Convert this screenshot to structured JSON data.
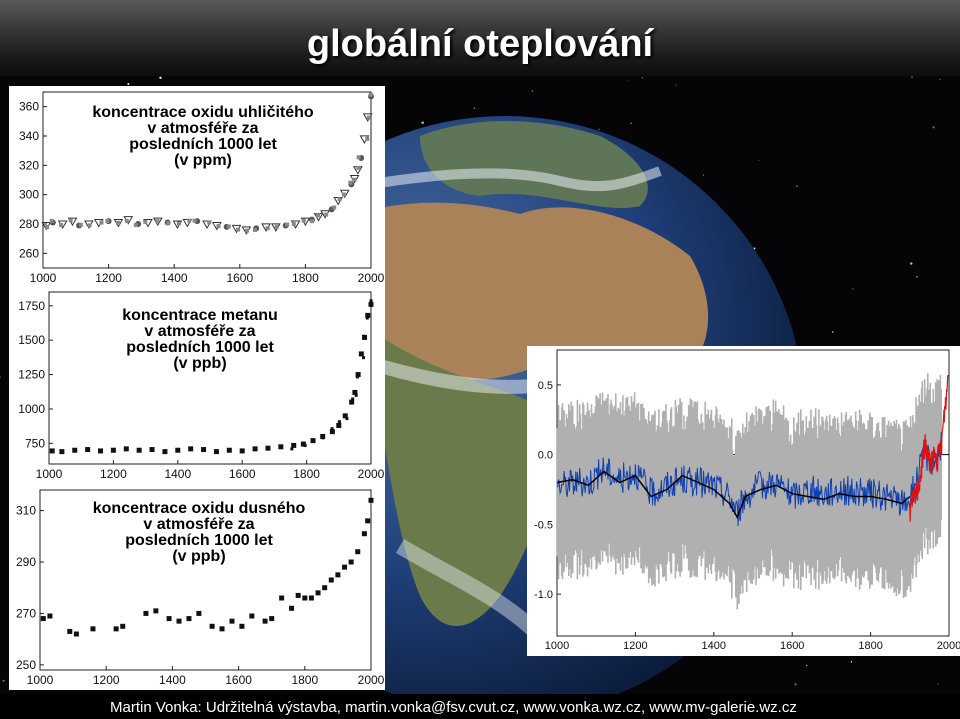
{
  "slide": {
    "title": "globální oteplování",
    "footer": "Martin Vonka: Udržitelná výstavba, martin.vonka@fsv.cvut.cz,   www.vonka.wz.cz, www.mv-galerie.wz.cz"
  },
  "colors": {
    "title_bar": "#3a3a3a",
    "markers": "#111111",
    "instrumental_series": "#e01010",
    "proxy_series": "#1040b0",
    "uncertainty_band": "#b0b0b0"
  },
  "chart_data": [
    {
      "type": "scatter",
      "title": "koncentrace oxidu uhličitého\nv atmosféře za\nposledních 1000 let\n(v ppm)",
      "xlim": [
        1000,
        2000
      ],
      "ylim": [
        250,
        370
      ],
      "x_ticks": [
        1000,
        1200,
        1400,
        1600,
        1800,
        2000
      ],
      "y_ticks": [
        260,
        280,
        300,
        320,
        340,
        360
      ],
      "grid": false,
      "series": [
        {
          "x": [
            1010,
            1030,
            1060,
            1090,
            1110,
            1140,
            1170,
            1200,
            1230,
            1260,
            1290,
            1320,
            1350,
            1380,
            1410,
            1440,
            1470,
            1500,
            1530,
            1560,
            1590,
            1620,
            1650,
            1680,
            1710,
            1740,
            1770,
            1800,
            1820,
            1840,
            1860,
            1880,
            1900,
            1920,
            1940,
            1950,
            1960,
            1970,
            1980,
            1990,
            2000
          ],
          "y": [
            279,
            281,
            280,
            282,
            279,
            280,
            281,
            282,
            281,
            283,
            280,
            281,
            282,
            281,
            280,
            281,
            282,
            280,
            279,
            278,
            277,
            276,
            277,
            278,
            278,
            279,
            280,
            282,
            283,
            285,
            287,
            290,
            296,
            301,
            307,
            311,
            317,
            325,
            338,
            353,
            367
          ]
        }
      ]
    },
    {
      "type": "scatter",
      "title": "koncentrace metanu\nv atmosféře za\nposledních 1000 let\n(v ppb)",
      "xlim": [
        1000,
        2000
      ],
      "ylim": [
        600,
        1850
      ],
      "x_ticks": [
        1000,
        1200,
        1400,
        1600,
        1800,
        2000
      ],
      "y_ticks": [
        750,
        1000,
        1250,
        1500,
        1750
      ],
      "grid": false,
      "series": [
        {
          "x": [
            1010,
            1040,
            1080,
            1120,
            1160,
            1200,
            1240,
            1280,
            1320,
            1360,
            1400,
            1440,
            1480,
            1520,
            1560,
            1600,
            1640,
            1680,
            1720,
            1760,
            1790,
            1820,
            1850,
            1880,
            1900,
            1920,
            1940,
            1950,
            1960,
            1970,
            1980,
            1990,
            2000
          ],
          "y": [
            695,
            690,
            700,
            705,
            695,
            700,
            710,
            700,
            705,
            690,
            700,
            710,
            705,
            690,
            700,
            695,
            710,
            715,
            725,
            735,
            745,
            770,
            800,
            835,
            880,
            950,
            1050,
            1120,
            1250,
            1400,
            1520,
            1680,
            1760
          ]
        }
      ]
    },
    {
      "type": "scatter",
      "title": "koncentrace oxidu dusného\nv atmosféře za\nposledních 1000 let\n(v ppb)",
      "xlim": [
        1000,
        2000
      ],
      "ylim": [
        248,
        318
      ],
      "x_ticks": [
        1000,
        1200,
        1400,
        1600,
        1800,
        2000
      ],
      "y_ticks": [
        250,
        270,
        290,
        310
      ],
      "grid": false,
      "series": [
        {
          "x": [
            1010,
            1030,
            1090,
            1110,
            1160,
            1230,
            1250,
            1320,
            1350,
            1390,
            1420,
            1450,
            1480,
            1520,
            1550,
            1580,
            1610,
            1640,
            1680,
            1700,
            1730,
            1760,
            1780,
            1800,
            1820,
            1840,
            1860,
            1880,
            1900,
            1920,
            1940,
            1960,
            1980,
            1990,
            2000
          ],
          "y": [
            268,
            269,
            263,
            262,
            264,
            264,
            265,
            270,
            271,
            268,
            267,
            268,
            270,
            265,
            264,
            267,
            265,
            269,
            267,
            268,
            276,
            272,
            277,
            276,
            276,
            278,
            280,
            283,
            285,
            288,
            290,
            294,
            301,
            306,
            314
          ]
        }
      ]
    },
    {
      "type": "line",
      "x_ticks": [
        1000,
        1200,
        1400,
        1600,
        1800,
        2000
      ],
      "y_ticks": [
        -1.0,
        -0.5,
        0.0,
        0.5
      ],
      "xlim": [
        1000,
        2000
      ],
      "ylim": [
        -1.3,
        0.75
      ],
      "grid": false,
      "series": [
        {
          "x": [
            1000,
            1040,
            1080,
            1120,
            1160,
            1200,
            1240,
            1280,
            1320,
            1360,
            1400,
            1440,
            1460,
            1480,
            1520,
            1560,
            1600,
            1640,
            1680,
            1720,
            1760,
            1800,
            1840,
            1880,
            1900
          ],
          "y": [
            -0.2,
            -0.18,
            -0.22,
            -0.12,
            -0.2,
            -0.15,
            -0.3,
            -0.25,
            -0.15,
            -0.2,
            -0.25,
            -0.35,
            -0.45,
            -0.3,
            -0.25,
            -0.22,
            -0.28,
            -0.3,
            -0.32,
            -0.28,
            -0.3,
            -0.3,
            -0.32,
            -0.35,
            -0.3
          ]
        },
        {
          "x": [
            1000,
            1040,
            1080,
            1120,
            1160,
            1200,
            1240,
            1280,
            1320,
            1360,
            1400,
            1440,
            1460,
            1480,
            1520,
            1560,
            1600,
            1640,
            1680,
            1720,
            1760,
            1800,
            1840,
            1880,
            1900,
            1920,
            1940,
            1960,
            1980
          ],
          "y": [
            -0.22,
            -0.2,
            -0.2,
            -0.1,
            -0.18,
            -0.12,
            -0.28,
            -0.22,
            -0.18,
            -0.2,
            -0.22,
            -0.3,
            -0.42,
            -0.3,
            -0.22,
            -0.2,
            -0.3,
            -0.25,
            -0.28,
            -0.25,
            -0.27,
            -0.28,
            -0.3,
            -0.35,
            -0.32,
            -0.15,
            0.0,
            -0.05,
            0.05
          ]
        },
        {
          "x": [
            1900,
            1910,
            1920,
            1930,
            1940,
            1950,
            1960,
            1970,
            1980,
            1985,
            1990,
            1995,
            1998
          ],
          "y": [
            -0.4,
            -0.32,
            -0.25,
            -0.1,
            0.1,
            -0.05,
            -0.02,
            -0.05,
            0.05,
            0.2,
            0.35,
            0.45,
            0.62
          ]
        }
      ]
    }
  ]
}
